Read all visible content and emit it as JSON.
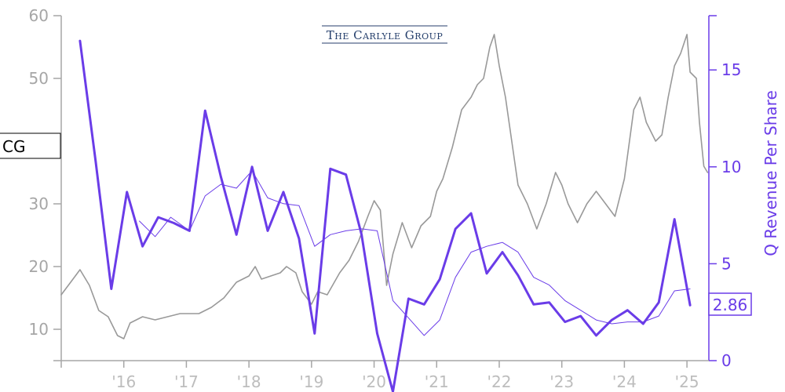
{
  "ticker": "CG",
  "logo": {
    "text": "The Carlyle Group"
  },
  "chart_data": {
    "type": "line",
    "title": "",
    "ylabel_right": "Q Revenue Per Share",
    "ylim_left": [
      5,
      60
    ],
    "ylim_right": [
      0,
      17.8
    ],
    "xlim": [
      2015.0,
      2025.35
    ],
    "left_ticks": [
      10,
      20,
      30,
      40,
      50,
      60
    ],
    "right_ticks": [
      0,
      5,
      10,
      15
    ],
    "x_tick_labels": [
      "'16",
      "'17",
      "'18",
      "'19",
      "'20",
      "'21",
      "'22",
      "'23",
      "'24",
      "'25"
    ],
    "x_tick_values": [
      2016,
      2017,
      2018,
      2019,
      2020,
      2021,
      2022,
      2023,
      2024,
      2025
    ],
    "last_value_label": "2.86",
    "colors": {
      "price": "#999999",
      "revenue": "#6a3ce8"
    },
    "series": [
      {
        "axis": "left",
        "style": "price",
        "points": [
          [
            2015.0,
            15.5
          ],
          [
            2015.15,
            17.5
          ],
          [
            2015.3,
            19.5
          ],
          [
            2015.45,
            17
          ],
          [
            2015.6,
            13
          ],
          [
            2015.75,
            12
          ],
          [
            2015.9,
            9
          ],
          [
            2016.0,
            8.5
          ],
          [
            2016.1,
            11
          ],
          [
            2016.3,
            12
          ],
          [
            2016.5,
            11.5
          ],
          [
            2016.7,
            12
          ],
          [
            2016.9,
            12.5
          ],
          [
            2017.0,
            12.5
          ],
          [
            2017.2,
            12.5
          ],
          [
            2017.4,
            13.5
          ],
          [
            2017.6,
            15
          ],
          [
            2017.8,
            17.5
          ],
          [
            2018.0,
            18.5
          ],
          [
            2018.1,
            20
          ],
          [
            2018.2,
            18
          ],
          [
            2018.35,
            18.5
          ],
          [
            2018.5,
            19
          ],
          [
            2018.6,
            20
          ],
          [
            2018.75,
            19
          ],
          [
            2018.85,
            16
          ],
          [
            2019.0,
            14
          ],
          [
            2019.1,
            16
          ],
          [
            2019.25,
            15.5
          ],
          [
            2019.45,
            19
          ],
          [
            2019.6,
            21
          ],
          [
            2019.75,
            24
          ],
          [
            2019.9,
            28
          ],
          [
            2020.0,
            30.5
          ],
          [
            2020.1,
            29
          ],
          [
            2020.2,
            17
          ],
          [
            2020.3,
            22
          ],
          [
            2020.45,
            27
          ],
          [
            2020.6,
            23
          ],
          [
            2020.75,
            26.5
          ],
          [
            2020.9,
            28
          ],
          [
            2021.0,
            32
          ],
          [
            2021.1,
            34
          ],
          [
            2021.25,
            39
          ],
          [
            2021.4,
            45
          ],
          [
            2021.55,
            47
          ],
          [
            2021.65,
            49
          ],
          [
            2021.75,
            50
          ],
          [
            2021.85,
            55
          ],
          [
            2021.92,
            57
          ],
          [
            2022.0,
            52
          ],
          [
            2022.1,
            47
          ],
          [
            2022.2,
            40
          ],
          [
            2022.3,
            33
          ],
          [
            2022.45,
            30
          ],
          [
            2022.6,
            26
          ],
          [
            2022.75,
            30
          ],
          [
            2022.9,
            35
          ],
          [
            2023.0,
            33
          ],
          [
            2023.1,
            30
          ],
          [
            2023.25,
            27
          ],
          [
            2023.4,
            30
          ],
          [
            2023.55,
            32
          ],
          [
            2023.7,
            30
          ],
          [
            2023.85,
            28
          ],
          [
            2024.0,
            34
          ],
          [
            2024.15,
            45
          ],
          [
            2024.25,
            47
          ],
          [
            2024.35,
            43
          ],
          [
            2024.5,
            40
          ],
          [
            2024.6,
            41
          ],
          [
            2024.7,
            47
          ],
          [
            2024.8,
            52
          ],
          [
            2024.9,
            54
          ],
          [
            2025.0,
            57
          ],
          [
            2025.05,
            51
          ],
          [
            2025.15,
            50
          ],
          [
            2025.2,
            43
          ],
          [
            2025.27,
            36
          ],
          [
            2025.33,
            35
          ]
        ]
      },
      {
        "axis": "right",
        "name": "",
        "style": "thick",
        "points": [
          [
            2015.3,
            16.5
          ],
          [
            2015.55,
            10.3
          ],
          [
            2015.8,
            3.7
          ],
          [
            2016.05,
            8.7
          ],
          [
            2016.3,
            5.9
          ],
          [
            2016.55,
            7.4
          ],
          [
            2016.8,
            7.1
          ],
          [
            2017.05,
            6.7
          ],
          [
            2017.3,
            12.9
          ],
          [
            2017.55,
            9.5
          ],
          [
            2017.8,
            6.5
          ],
          [
            2018.05,
            10.0
          ],
          [
            2018.3,
            6.7
          ],
          [
            2018.55,
            8.7
          ],
          [
            2018.8,
            6.3
          ],
          [
            2019.05,
            1.4
          ],
          [
            2019.3,
            9.9
          ],
          [
            2019.55,
            9.6
          ],
          [
            2019.8,
            6.5
          ],
          [
            2020.05,
            1.4
          ],
          [
            2020.3,
            -1.6
          ],
          [
            2020.55,
            3.2
          ],
          [
            2020.8,
            2.9
          ],
          [
            2021.05,
            4.2
          ],
          [
            2021.3,
            6.8
          ],
          [
            2021.55,
            7.6
          ],
          [
            2021.8,
            4.5
          ],
          [
            2022.05,
            5.6
          ],
          [
            2022.3,
            4.4
          ],
          [
            2022.55,
            2.9
          ],
          [
            2022.8,
            3.0
          ],
          [
            2023.05,
            2.0
          ],
          [
            2023.3,
            2.3
          ],
          [
            2023.55,
            1.3
          ],
          [
            2023.8,
            2.1
          ],
          [
            2024.05,
            2.6
          ],
          [
            2024.3,
            1.9
          ],
          [
            2024.55,
            3.0
          ],
          [
            2024.8,
            7.3
          ],
          [
            2025.05,
            2.86
          ]
        ]
      },
      {
        "axis": "right",
        "name": "",
        "style": "thin",
        "points": [
          [
            2016.25,
            7.2
          ],
          [
            2016.5,
            6.4
          ],
          [
            2016.75,
            7.4
          ],
          [
            2017.05,
            6.7
          ],
          [
            2017.3,
            8.5
          ],
          [
            2017.55,
            9.1
          ],
          [
            2017.8,
            8.9
          ],
          [
            2018.05,
            9.8
          ],
          [
            2018.3,
            8.4
          ],
          [
            2018.55,
            8.1
          ],
          [
            2018.8,
            8.0
          ],
          [
            2019.05,
            5.9
          ],
          [
            2019.3,
            6.5
          ],
          [
            2019.55,
            6.7
          ],
          [
            2019.8,
            6.8
          ],
          [
            2020.05,
            6.7
          ],
          [
            2020.3,
            3.1
          ],
          [
            2020.55,
            2.2
          ],
          [
            2020.8,
            1.3
          ],
          [
            2021.05,
            2.1
          ],
          [
            2021.3,
            4.3
          ],
          [
            2021.55,
            5.6
          ],
          [
            2021.8,
            5.9
          ],
          [
            2022.05,
            6.1
          ],
          [
            2022.3,
            5.6
          ],
          [
            2022.55,
            4.3
          ],
          [
            2022.8,
            3.9
          ],
          [
            2023.05,
            3.1
          ],
          [
            2023.3,
            2.6
          ],
          [
            2023.55,
            2.1
          ],
          [
            2023.8,
            1.9
          ],
          [
            2024.05,
            2.0
          ],
          [
            2024.3,
            2.0
          ],
          [
            2024.55,
            2.3
          ],
          [
            2024.8,
            3.6
          ],
          [
            2025.05,
            3.7
          ]
        ]
      }
    ]
  }
}
